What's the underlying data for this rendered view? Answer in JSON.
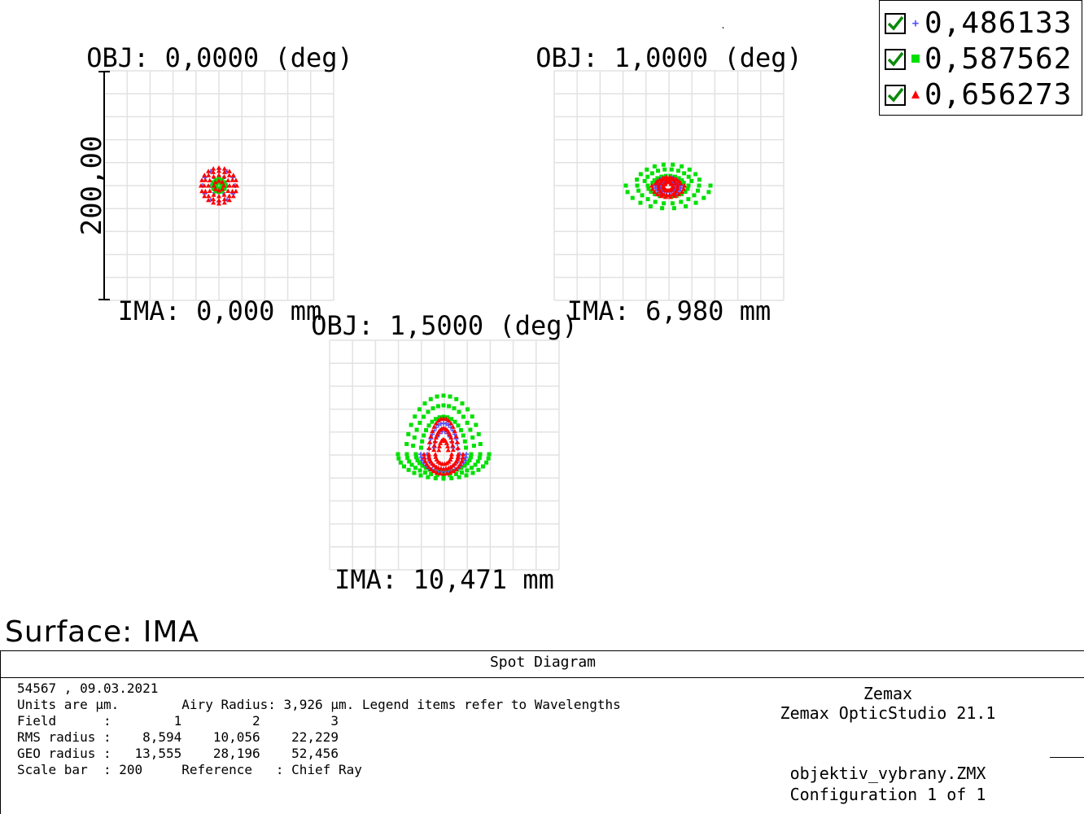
{
  "legend": {
    "items": [
      {
        "wavelength": "0,486133",
        "color": "#5050ff",
        "marker": "plus",
        "checked": true
      },
      {
        "wavelength": "0,587562",
        "color": "#00e000",
        "marker": "square",
        "checked": true
      },
      {
        "wavelength": "0,656273",
        "color": "#ff0000",
        "marker": "triangle",
        "checked": true
      }
    ]
  },
  "chart_data": {
    "type": "scatter",
    "title": "Spot Diagram",
    "scale_bar_label": "200,00",
    "grid": true,
    "panels": [
      {
        "obj_label": "OBJ: 0,0000 (deg)",
        "ima_label": "IMA: 0,000 mm",
        "rms_radius": 8.594,
        "geo_radius": 13.555,
        "spots": [
          {
            "wavelength": "0,486133",
            "rings": [
              [
                10,
                6
              ],
              [
                20,
                12
              ]
            ]
          },
          {
            "wavelength": "0,587562",
            "rings": [
              [
                4,
                8
              ],
              [
                8,
                12
              ]
            ]
          },
          {
            "wavelength": "0,656273",
            "rings": [
              [
                6,
                8
              ],
              [
                13,
                12
              ],
              [
                18,
                16
              ],
              [
                22,
                20
              ]
            ]
          }
        ]
      },
      {
        "obj_label": "OBJ: 1,0000 (deg)",
        "ima_label": "IMA: 6,980 mm",
        "rms_radius": 10.056,
        "geo_radius": 28.196,
        "spots": [
          {
            "wavelength": "0,587562",
            "rings": [
              [
                20,
                12,
                25,
                14
              ],
              [
                30,
                20,
                38,
                22
              ],
              [
                40,
                26,
                52,
                28
              ]
            ]
          },
          {
            "wavelength": "0,486133",
            "rings": [
              [
                8,
                8,
                10,
                8
              ],
              [
                14,
                10,
                16,
                12
              ]
            ]
          },
          {
            "wavelength": "0,656273",
            "rings": [
              [
                4,
                6,
                6,
                6
              ],
              [
                10,
                10,
                12,
                12
              ],
              [
                16,
                10,
                20,
                14
              ]
            ]
          }
        ]
      },
      {
        "obj_label": "OBJ: 1,5000 (deg)",
        "ima_label": "IMA: 10,471 mm",
        "rms_radius": 22.229,
        "geo_radius": 52.456,
        "spots": [
          {
            "wavelength": "0,587562",
            "rings": [
              [
                28,
                46,
                34,
                22
              ],
              [
                38,
                60,
                45,
                26
              ],
              [
                46,
                72,
                56,
                30
              ]
            ]
          },
          {
            "wavelength": "0,486133",
            "rings": [
              [
                12,
                28,
                20,
                18
              ],
              [
                18,
                38,
                28,
                22
              ]
            ]
          },
          {
            "wavelength": "0,656273",
            "rings": [
              [
                6,
                18,
                10,
                12
              ],
              [
                12,
                32,
                18,
                18
              ],
              [
                18,
                44,
                24,
                24
              ]
            ]
          }
        ]
      }
    ]
  },
  "surface": {
    "label": "Surface: IMA"
  },
  "info": {
    "title": "Spot Diagram",
    "line1": "54567 , 09.03.2021",
    "line2": "Units are µm.        Airy Radius: 3,926 µm. Legend items refer to Wavelengths",
    "line3": "Field      :        1         2         3",
    "line4": "RMS radius :    8,594    10,056    22,229",
    "line5": "GEO radius :   13,555    28,196    52,456",
    "line6": "Scale bar  : 200     Reference   : Chief Ray",
    "company": "Zemax",
    "product": "Zemax OpticStudio 21.1",
    "file": "objektiv_vybrany.ZMX",
    "config": "Configuration 1 of 1"
  }
}
